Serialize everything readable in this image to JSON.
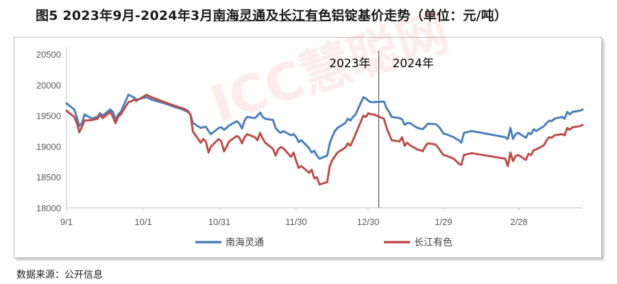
{
  "title_parts": {
    "prefix": "图5  2023年9月-2024年3月",
    "series1": "南海灵通",
    "mid": "及",
    "series2": "长江有色",
    "suffix": "铝锭基价走势（单位：元/吨）"
  },
  "source": "数据来源：公开信息",
  "watermark": "ICC慧聪网",
  "chart_data": {
    "type": "line",
    "title": "图5 2023年9月-2024年3月南海灵通及长江有色铝锭基价走势（单位：元/吨）",
    "xlabel": "",
    "ylabel": "",
    "ylim": [
      18000,
      20500
    ],
    "yticks": [
      18000,
      18500,
      19000,
      19500,
      20000,
      20500
    ],
    "xticks": [
      "9/1",
      "10/1",
      "10/31",
      "11/30",
      "12/30",
      "1/29",
      "2/28"
    ],
    "divider": {
      "x": "12/31",
      "labels": [
        "2023年",
        "2024年"
      ]
    },
    "grid": false,
    "legend_position": "bottom",
    "colors": {
      "南海灵通": "#4a7ebb",
      "长江有色": "#be4b48"
    },
    "series": [
      {
        "name": "南海灵通",
        "points": [
          [
            "2023-09-01",
            19700
          ],
          [
            "2023-09-04",
            19600
          ],
          [
            "2023-09-05",
            19470
          ],
          [
            "2023-09-06",
            19330
          ],
          [
            "2023-09-07",
            19380
          ],
          [
            "2023-09-08",
            19520
          ],
          [
            "2023-09-11",
            19450
          ],
          [
            "2023-09-12",
            19470
          ],
          [
            "2023-09-13",
            19480
          ],
          [
            "2023-09-14",
            19540
          ],
          [
            "2023-09-15",
            19500
          ],
          [
            "2023-09-18",
            19600
          ],
          [
            "2023-09-19",
            19560
          ],
          [
            "2023-09-20",
            19430
          ],
          [
            "2023-09-21",
            19520
          ],
          [
            "2023-09-22",
            19560
          ],
          [
            "2023-09-25",
            19840
          ],
          [
            "2023-09-26",
            19820
          ],
          [
            "2023-09-27",
            19800
          ],
          [
            "2023-09-28",
            19760
          ],
          [
            "2023-10-02",
            19800
          ],
          [
            "2023-10-03",
            19780
          ],
          [
            "2023-10-04",
            19760
          ],
          [
            "2023-10-09",
            19700
          ],
          [
            "2023-10-13",
            19640
          ],
          [
            "2023-10-16",
            19600
          ],
          [
            "2023-10-18",
            19560
          ],
          [
            "2023-10-19",
            19520
          ],
          [
            "2023-10-20",
            19380
          ],
          [
            "2023-10-23",
            19300
          ],
          [
            "2023-10-24",
            19310
          ],
          [
            "2023-10-25",
            19320
          ],
          [
            "2023-10-26",
            19250
          ],
          [
            "2023-10-27",
            19200
          ],
          [
            "2023-10-30",
            19300
          ],
          [
            "2023-10-31",
            19310
          ],
          [
            "2023-11-01",
            19270
          ],
          [
            "2023-11-02",
            19300
          ],
          [
            "2023-11-03",
            19340
          ],
          [
            "2023-11-06",
            19410
          ],
          [
            "2023-11-07",
            19370
          ],
          [
            "2023-11-08",
            19290
          ],
          [
            "2023-11-09",
            19420
          ],
          [
            "2023-11-10",
            19480
          ],
          [
            "2023-11-13",
            19460
          ],
          [
            "2023-11-14",
            19500
          ],
          [
            "2023-11-15",
            19550
          ],
          [
            "2023-11-16",
            19480
          ],
          [
            "2023-11-17",
            19450
          ],
          [
            "2023-11-20",
            19430
          ],
          [
            "2023-11-21",
            19300
          ],
          [
            "2023-11-22",
            19250
          ],
          [
            "2023-11-23",
            19220
          ],
          [
            "2023-11-24",
            19250
          ],
          [
            "2023-11-27",
            19180
          ],
          [
            "2023-11-28",
            19200
          ],
          [
            "2023-11-29",
            19150
          ],
          [
            "2023-11-30",
            19070
          ],
          [
            "2023-12-01",
            19100
          ],
          [
            "2023-12-04",
            18970
          ],
          [
            "2023-12-05",
            18900
          ],
          [
            "2023-12-06",
            18930
          ],
          [
            "2023-12-07",
            18850
          ],
          [
            "2023-12-08",
            18800
          ],
          [
            "2023-12-11",
            18850
          ],
          [
            "2023-12-12",
            19050
          ],
          [
            "2023-12-13",
            19160
          ],
          [
            "2023-12-14",
            19250
          ],
          [
            "2023-12-15",
            19300
          ],
          [
            "2023-12-18",
            19380
          ],
          [
            "2023-12-19",
            19450
          ],
          [
            "2023-12-20",
            19420
          ],
          [
            "2023-12-21",
            19480
          ],
          [
            "2023-12-22",
            19520
          ],
          [
            "2023-12-25",
            19800
          ],
          [
            "2023-12-26",
            19780
          ],
          [
            "2023-12-27",
            19740
          ],
          [
            "2023-12-28",
            19720
          ],
          [
            "2023-12-29",
            19720
          ],
          [
            "2024-01-02",
            19730
          ],
          [
            "2024-01-03",
            19620
          ],
          [
            "2024-01-04",
            19560
          ],
          [
            "2024-01-05",
            19480
          ],
          [
            "2024-01-08",
            19460
          ],
          [
            "2024-01-09",
            19440
          ],
          [
            "2024-01-10",
            19350
          ],
          [
            "2024-01-11",
            19380
          ],
          [
            "2024-01-12",
            19380
          ],
          [
            "2024-01-15",
            19300
          ],
          [
            "2024-01-16",
            19290
          ],
          [
            "2024-01-17",
            19280
          ],
          [
            "2024-01-18",
            19320
          ],
          [
            "2024-01-19",
            19370
          ],
          [
            "2024-01-22",
            19360
          ],
          [
            "2024-01-23",
            19330
          ],
          [
            "2024-01-24",
            19280
          ],
          [
            "2024-01-25",
            19210
          ],
          [
            "2024-01-26",
            19200
          ],
          [
            "2024-01-29",
            19150
          ],
          [
            "2024-01-30",
            19120
          ],
          [
            "2024-01-31",
            19100
          ],
          [
            "2024-02-01",
            19060
          ],
          [
            "2024-02-02",
            19220
          ],
          [
            "2024-02-05",
            19250
          ],
          [
            "2024-02-18",
            19150
          ],
          [
            "2024-02-19",
            19120
          ],
          [
            "2024-02-20",
            19300
          ],
          [
            "2024-02-21",
            19120
          ],
          [
            "2024-02-22",
            19200
          ],
          [
            "2024-02-23",
            19220
          ],
          [
            "2024-02-26",
            19140
          ],
          [
            "2024-02-27",
            19220
          ],
          [
            "2024-02-28",
            19200
          ],
          [
            "2024-02-29",
            19280
          ],
          [
            "2024-03-01",
            19250
          ],
          [
            "2024-03-04",
            19330
          ],
          [
            "2024-03-05",
            19380
          ],
          [
            "2024-03-06",
            19420
          ],
          [
            "2024-03-07",
            19410
          ],
          [
            "2024-03-08",
            19450
          ],
          [
            "2024-03-11",
            19480
          ],
          [
            "2024-03-12",
            19450
          ],
          [
            "2024-03-13",
            19560
          ],
          [
            "2024-03-14",
            19520
          ],
          [
            "2024-03-15",
            19560
          ],
          [
            "2024-03-18",
            19580
          ],
          [
            "2024-03-19",
            19600
          ]
        ]
      },
      {
        "name": "长江有色",
        "points": [
          [
            "2023-09-01",
            19580
          ],
          [
            "2023-09-04",
            19480
          ],
          [
            "2023-09-05",
            19380
          ],
          [
            "2023-09-06",
            19230
          ],
          [
            "2023-09-07",
            19320
          ],
          [
            "2023-09-08",
            19420
          ],
          [
            "2023-09-11",
            19430
          ],
          [
            "2023-09-12",
            19440
          ],
          [
            "2023-09-13",
            19450
          ],
          [
            "2023-09-14",
            19510
          ],
          [
            "2023-09-15",
            19460
          ],
          [
            "2023-09-18",
            19560
          ],
          [
            "2023-09-19",
            19480
          ],
          [
            "2023-09-20",
            19380
          ],
          [
            "2023-09-21",
            19480
          ],
          [
            "2023-09-22",
            19520
          ],
          [
            "2023-09-25",
            19720
          ],
          [
            "2023-09-26",
            19730
          ],
          [
            "2023-09-27",
            19760
          ],
          [
            "2023-09-28",
            19740
          ],
          [
            "2023-10-02",
            19840
          ],
          [
            "2023-10-03",
            19820
          ],
          [
            "2023-10-04",
            19800
          ],
          [
            "2023-10-09",
            19720
          ],
          [
            "2023-10-13",
            19660
          ],
          [
            "2023-10-16",
            19620
          ],
          [
            "2023-10-18",
            19580
          ],
          [
            "2023-10-19",
            19520
          ],
          [
            "2023-10-20",
            19240
          ],
          [
            "2023-10-23",
            19060
          ],
          [
            "2023-10-24",
            19120
          ],
          [
            "2023-10-25",
            19080
          ],
          [
            "2023-10-26",
            18900
          ],
          [
            "2023-10-27",
            19000
          ],
          [
            "2023-10-30",
            19120
          ],
          [
            "2023-10-31",
            19080
          ],
          [
            "2023-11-01",
            18920
          ],
          [
            "2023-11-02",
            18990
          ],
          [
            "2023-11-03",
            19080
          ],
          [
            "2023-11-06",
            19170
          ],
          [
            "2023-11-07",
            19140
          ],
          [
            "2023-11-08",
            19050
          ],
          [
            "2023-11-09",
            19150
          ],
          [
            "2023-11-10",
            19200
          ],
          [
            "2023-11-13",
            19150
          ],
          [
            "2023-11-14",
            19100
          ],
          [
            "2023-11-15",
            19220
          ],
          [
            "2023-11-16",
            19130
          ],
          [
            "2023-11-17",
            19060
          ],
          [
            "2023-11-20",
            18960
          ],
          [
            "2023-11-21",
            18850
          ],
          [
            "2023-11-22",
            18950
          ],
          [
            "2023-11-23",
            18990
          ],
          [
            "2023-11-24",
            18970
          ],
          [
            "2023-11-27",
            18830
          ],
          [
            "2023-11-28",
            18900
          ],
          [
            "2023-11-29",
            18760
          ],
          [
            "2023-11-30",
            18650
          ],
          [
            "2023-12-01",
            18680
          ],
          [
            "2023-12-04",
            18570
          ],
          [
            "2023-12-05",
            18620
          ],
          [
            "2023-12-06",
            18480
          ],
          [
            "2023-12-07",
            18500
          ],
          [
            "2023-12-08",
            18380
          ],
          [
            "2023-12-11",
            18420
          ],
          [
            "2023-12-12",
            18680
          ],
          [
            "2023-12-13",
            18780
          ],
          [
            "2023-12-14",
            18840
          ],
          [
            "2023-12-15",
            18900
          ],
          [
            "2023-12-18",
            18980
          ],
          [
            "2023-12-19",
            19050
          ],
          [
            "2023-12-20",
            19010
          ],
          [
            "2023-12-21",
            19100
          ],
          [
            "2023-12-22",
            19200
          ],
          [
            "2023-12-25",
            19500
          ],
          [
            "2023-12-26",
            19480
          ],
          [
            "2023-12-27",
            19540
          ],
          [
            "2023-12-28",
            19520
          ],
          [
            "2023-12-29",
            19520
          ],
          [
            "2024-01-02",
            19450
          ],
          [
            "2024-01-03",
            19300
          ],
          [
            "2024-01-04",
            19200
          ],
          [
            "2024-01-05",
            19100
          ],
          [
            "2024-01-08",
            19080
          ],
          [
            "2024-01-09",
            19150
          ],
          [
            "2024-01-10",
            19010
          ],
          [
            "2024-01-11",
            19060
          ],
          [
            "2024-01-12",
            19020
          ],
          [
            "2024-01-15",
            18950
          ],
          [
            "2024-01-16",
            18940
          ],
          [
            "2024-01-17",
            18920
          ],
          [
            "2024-01-18",
            19000
          ],
          [
            "2024-01-19",
            19050
          ],
          [
            "2024-01-22",
            19030
          ],
          [
            "2024-01-23",
            18980
          ],
          [
            "2024-01-24",
            18920
          ],
          [
            "2024-01-25",
            18860
          ],
          [
            "2024-01-26",
            18850
          ],
          [
            "2024-01-29",
            18800
          ],
          [
            "2024-01-30",
            18760
          ],
          [
            "2024-01-31",
            18720
          ],
          [
            "2024-02-01",
            18700
          ],
          [
            "2024-02-02",
            18860
          ],
          [
            "2024-02-05",
            18890
          ],
          [
            "2024-02-18",
            18800
          ],
          [
            "2024-02-19",
            18680
          ],
          [
            "2024-02-20",
            18900
          ],
          [
            "2024-02-21",
            18760
          ],
          [
            "2024-02-22",
            18840
          ],
          [
            "2024-02-23",
            18860
          ],
          [
            "2024-02-26",
            18780
          ],
          [
            "2024-02-27",
            18880
          ],
          [
            "2024-02-28",
            18860
          ],
          [
            "2024-02-29",
            18940
          ],
          [
            "2024-03-01",
            18950
          ],
          [
            "2024-03-04",
            19020
          ],
          [
            "2024-03-05",
            19100
          ],
          [
            "2024-03-06",
            19150
          ],
          [
            "2024-03-07",
            19140
          ],
          [
            "2024-03-08",
            19180
          ],
          [
            "2024-03-11",
            19200
          ],
          [
            "2024-03-12",
            19180
          ],
          [
            "2024-03-13",
            19300
          ],
          [
            "2024-03-14",
            19270
          ],
          [
            "2024-03-15",
            19310
          ],
          [
            "2024-03-18",
            19330
          ],
          [
            "2024-03-19",
            19350
          ]
        ]
      }
    ]
  }
}
